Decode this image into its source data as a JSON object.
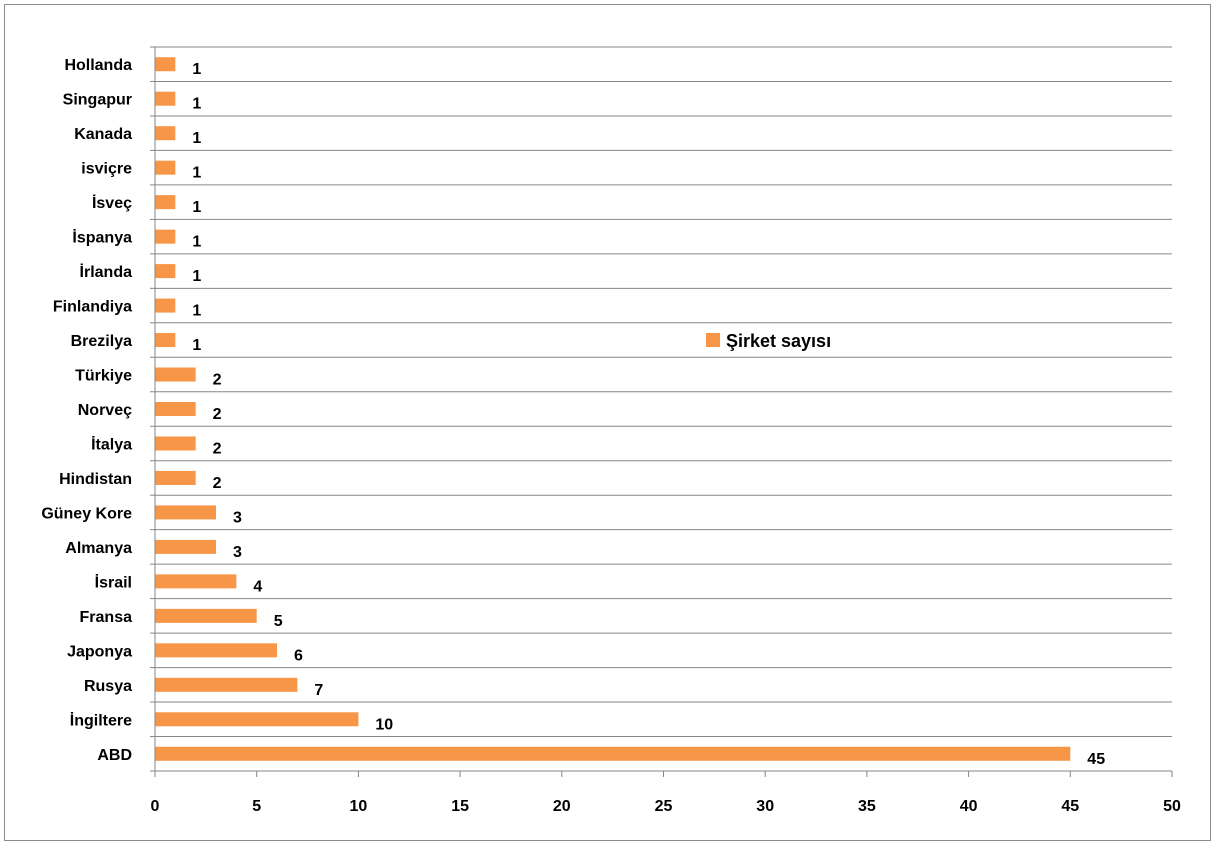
{
  "chart_data": {
    "type": "bar",
    "orientation": "horizontal",
    "categories": [
      "ABD",
      "İngiltere",
      "Rusya",
      "Japonya",
      "Fransa",
      "İsrail",
      "Almanya",
      "Güney Kore",
      "Hindistan",
      "İtalya",
      "Norveç",
      "Türkiye",
      "Brezilya",
      "Finlandiya",
      "İrlanda",
      "İspanya",
      "İsveç",
      "isviçre",
      "Kanada",
      "Singapur",
      "Hollanda"
    ],
    "series": [
      {
        "name": "Şirket sayısı",
        "values": [
          45,
          10,
          7,
          6,
          5,
          4,
          3,
          3,
          2,
          2,
          2,
          2,
          1,
          1,
          1,
          1,
          1,
          1,
          1,
          1,
          1
        ]
      }
    ],
    "xlim": [
      0,
      50
    ],
    "xticks": [
      "0",
      "5",
      "10",
      "15",
      "20",
      "25",
      "30",
      "35",
      "40",
      "45",
      "50"
    ],
    "grid": true,
    "legend_position": "right",
    "bar_color": "#F79646",
    "grid_color": "#868686"
  }
}
